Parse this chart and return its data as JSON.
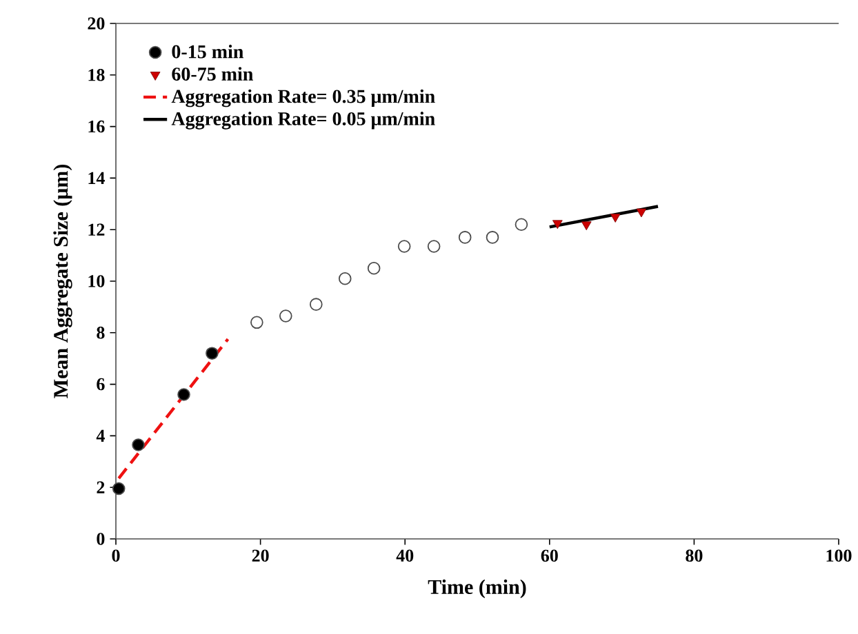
{
  "chart_data": {
    "type": "scatter",
    "xlabel": "Time (min)",
    "ylabel": "Mean Aggregate Size (μm)",
    "xlim": [
      0,
      100
    ],
    "xticks": [
      0,
      20,
      40,
      60,
      80,
      100
    ],
    "ylim": [
      0,
      20
    ],
    "yticks": [
      0,
      2,
      4,
      6,
      8,
      10,
      12,
      14,
      16,
      18,
      20
    ],
    "legend": "top left",
    "grid": false,
    "series": [
      {
        "name": "0-15 min",
        "type": "scatter",
        "marker": "circle",
        "color": "#000000",
        "x": [
          0.4,
          3.1,
          9.4,
          13.3
        ],
        "values": [
          1.95,
          3.65,
          5.6,
          7.2
        ]
      },
      {
        "name": "60-75 min",
        "type": "scatter",
        "marker": "triangle",
        "color": "#cc0000",
        "x": [
          61.1,
          65.1,
          69.1,
          72.7
        ],
        "values": [
          12.25,
          12.2,
          12.5,
          12.7
        ]
      },
      {
        "name": "Aggregation Rate= 0.35 μm/min",
        "type": "line",
        "marker": "none",
        "line_style": "dashed",
        "color": "#ee1111",
        "x": [
          0.4,
          15.5
        ],
        "values": [
          2.35,
          7.75
        ]
      },
      {
        "name": "Aggregation Rate= 0.05 μm/min",
        "type": "line",
        "marker": "none",
        "line_style": "solid",
        "color": "#000000",
        "x": [
          60,
          75
        ],
        "values": [
          12.1,
          12.9
        ]
      },
      {
        "type": "scatter",
        "marker": "circle",
        "color": "#ffffff",
        "x": [
          19.5,
          23.5,
          27.7,
          31.7,
          35.7,
          39.9,
          44,
          48.3,
          52.1,
          56.1
        ],
        "values": [
          8.4,
          8.65,
          9.1,
          10.1,
          10.5,
          11.35,
          11.35,
          11.7,
          11.7,
          12.2
        ]
      }
    ]
  }
}
